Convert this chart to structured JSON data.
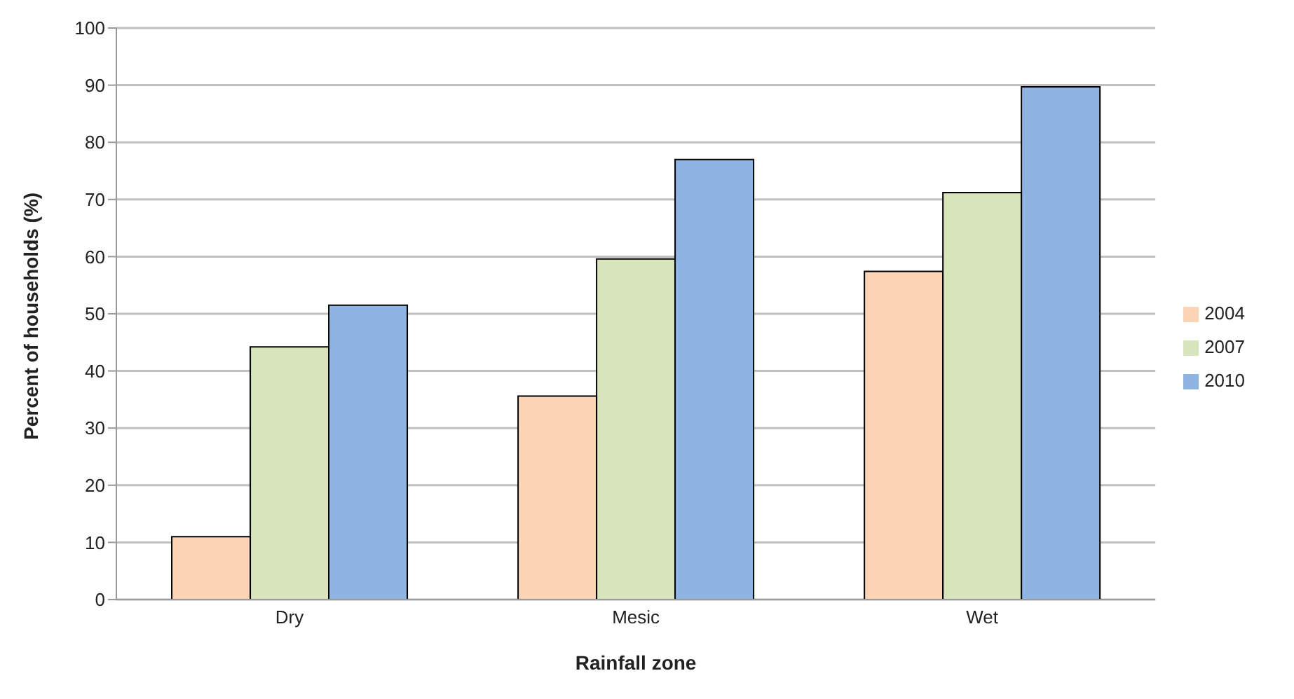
{
  "chart_data": {
    "type": "bar",
    "xlabel": "Rainfall zone",
    "ylabel": "Percent of households (%)",
    "categories": [
      "Dry",
      "Mesic",
      "Wet"
    ],
    "series": [
      {
        "name": "2004",
        "color": "#fad4b4",
        "values": [
          11.0,
          35.6,
          57.4
        ]
      },
      {
        "name": "2007",
        "color": "#d8e4bc",
        "values": [
          44.2,
          59.6,
          71.2
        ]
      },
      {
        "name": "2010",
        "color": "#8eb4e3",
        "values": [
          51.5,
          77.0,
          89.7
        ]
      }
    ],
    "ylim": [
      0,
      100
    ],
    "yticks": [
      0,
      10,
      20,
      30,
      40,
      50,
      60,
      70,
      80,
      90,
      100
    ],
    "grid": "y",
    "legend": "right"
  }
}
